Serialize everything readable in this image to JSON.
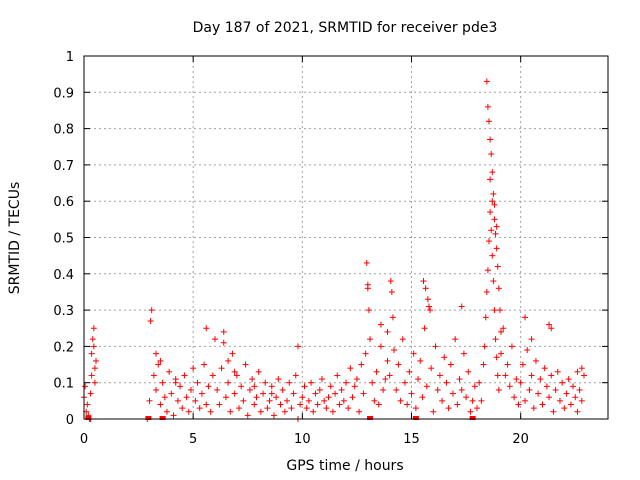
{
  "chart_data": {
    "type": "scatter",
    "title": "Day 187 of 2021, SRMTID for receiver pde3",
    "xlabel": "GPS time / hours",
    "ylabel": "SRMTID / TECUs",
    "xlim": [
      0,
      24
    ],
    "ylim": [
      0,
      1
    ],
    "xticks": [
      0,
      5,
      10,
      15,
      20
    ],
    "xtick_labels": [
      "0",
      "5",
      "10",
      "15",
      "20"
    ],
    "yticks": [
      0,
      0.1,
      0.2,
      0.3,
      0.4,
      0.5,
      0.6,
      0.7,
      0.8,
      0.9,
      1
    ],
    "ytick_labels": [
      "0",
      "0.1",
      "0.2",
      "0.3",
      "0.4",
      "0.5",
      "0.6",
      "0.7",
      "0.8",
      "0.9",
      "1"
    ],
    "grid": true,
    "marker": "plus",
    "series": [
      {
        "name": "pde3",
        "color": "#ff0000",
        "x": [
          0.0,
          0.05,
          0.1,
          0.15,
          0.2,
          0.25,
          0.3,
          0.35,
          0.4,
          0.45,
          0.5,
          0.55,
          0.3,
          0.35,
          0.45,
          0.5,
          2.9,
          3.0,
          3.1,
          3.2,
          3.3,
          3.4,
          3.5,
          3.6,
          3.7,
          3.8,
          3.9,
          4.0,
          4.1,
          4.2,
          4.3,
          4.4,
          4.5,
          4.6,
          4.7,
          4.8,
          4.9,
          5.0,
          5.1,
          5.2,
          5.3,
          5.4,
          5.5,
          5.6,
          5.7,
          5.8,
          5.9,
          3.05,
          3.3,
          3.5,
          4.2,
          5.6,
          6.0,
          6.1,
          6.2,
          6.3,
          6.4,
          6.5,
          6.6,
          6.7,
          6.8,
          6.9,
          7.0,
          7.1,
          7.2,
          7.3,
          7.4,
          7.5,
          7.6,
          7.7,
          7.8,
          7.9,
          8.0,
          8.1,
          8.2,
          8.3,
          8.4,
          8.5,
          8.6,
          8.7,
          8.8,
          8.9,
          9.0,
          9.1,
          9.2,
          9.3,
          9.4,
          9.5,
          9.6,
          9.7,
          9.8,
          9.9,
          6.4,
          6.6,
          6.9,
          7.8,
          8.6,
          9.8,
          10.0,
          10.1,
          10.2,
          10.3,
          10.4,
          10.5,
          10.6,
          10.7,
          10.8,
          10.9,
          11.0,
          11.1,
          11.2,
          11.3,
          11.4,
          11.5,
          11.6,
          11.7,
          11.8,
          11.9,
          12.0,
          12.1,
          12.2,
          12.3,
          12.4,
          12.5,
          12.6,
          12.7,
          12.8,
          12.9,
          13.0,
          13.1,
          13.2,
          13.3,
          13.4,
          13.5,
          13.6,
          13.7,
          13.8,
          13.9,
          12.95,
          13.0,
          13.05,
          13.6,
          13.9,
          14.0,
          14.1,
          14.2,
          14.3,
          14.4,
          14.5,
          14.6,
          14.7,
          14.8,
          14.9,
          15.0,
          15.1,
          15.2,
          15.3,
          15.4,
          15.5,
          15.6,
          15.7,
          15.8,
          15.9,
          16.0,
          16.1,
          16.2,
          16.3,
          16.4,
          16.5,
          16.6,
          16.7,
          16.8,
          16.9,
          17.0,
          17.1,
          17.2,
          17.3,
          17.4,
          17.5,
          17.6,
          17.7,
          17.8,
          17.9,
          14.05,
          14.15,
          15.55,
          15.65,
          15.75,
          15.85,
          17.3,
          18.0,
          18.1,
          18.2,
          18.3,
          18.35,
          18.4,
          18.45,
          18.5,
          18.55,
          18.6,
          18.65,
          18.7,
          18.75,
          18.8,
          18.85,
          18.9,
          18.95,
          19.0,
          19.1,
          19.2,
          19.3,
          19.4,
          19.5,
          19.6,
          19.7,
          19.8,
          19.9,
          18.45,
          18.5,
          18.55,
          18.6,
          18.65,
          18.7,
          18.75,
          18.8,
          18.85,
          18.9,
          18.95,
          19.0,
          19.05,
          19.1,
          18.6,
          18.7,
          18.8,
          18.9,
          20.0,
          20.1,
          20.2,
          20.3,
          20.4,
          20.5,
          20.6,
          20.7,
          20.8,
          20.9,
          21.0,
          21.1,
          21.2,
          21.3,
          21.4,
          21.5,
          21.6,
          21.7,
          21.8,
          21.9,
          22.0,
          22.1,
          22.2,
          22.3,
          22.4,
          22.5,
          22.6,
          22.7,
          22.8,
          22.9,
          20.2,
          20.5,
          21.3,
          21.4,
          22.6,
          22.8
        ],
        "y": [
          0.06,
          0.09,
          0.02,
          0.04,
          0.01,
          0.0,
          0.0,
          0.12,
          0.22,
          0.25,
          0.14,
          0.16,
          0.07,
          0.18,
          0.2,
          0.1,
          0.0,
          0.05,
          0.3,
          0.12,
          0.08,
          0.15,
          0.04,
          0.1,
          0.06,
          0.02,
          0.13,
          0.07,
          0.01,
          0.11,
          0.05,
          0.09,
          0.03,
          0.12,
          0.06,
          0.02,
          0.08,
          0.14,
          0.05,
          0.1,
          0.03,
          0.07,
          0.15,
          0.04,
          0.09,
          0.02,
          0.12,
          0.27,
          0.18,
          0.16,
          0.1,
          0.25,
          0.22,
          0.08,
          0.04,
          0.14,
          0.24,
          0.06,
          0.1,
          0.02,
          0.18,
          0.07,
          0.12,
          0.03,
          0.09,
          0.05,
          0.15,
          0.01,
          0.08,
          0.11,
          0.04,
          0.06,
          0.13,
          0.02,
          0.07,
          0.1,
          0.03,
          0.05,
          0.09,
          0.01,
          0.06,
          0.11,
          0.04,
          0.08,
          0.02,
          0.05,
          0.1,
          0.03,
          0.07,
          0.12,
          0.0,
          0.04,
          0.21,
          0.16,
          0.13,
          0.09,
          0.07,
          0.2,
          0.06,
          0.09,
          0.03,
          0.05,
          0.1,
          0.02,
          0.07,
          0.04,
          0.08,
          0.11,
          0.05,
          0.03,
          0.06,
          0.09,
          0.02,
          0.07,
          0.12,
          0.04,
          0.08,
          0.05,
          0.1,
          0.03,
          0.14,
          0.06,
          0.09,
          0.11,
          0.02,
          0.15,
          0.07,
          0.18,
          0.36,
          0.22,
          0.1,
          0.05,
          0.13,
          0.04,
          0.2,
          0.08,
          0.11,
          0.16,
          0.43,
          0.37,
          0.3,
          0.26,
          0.24,
          0.12,
          0.35,
          0.19,
          0.08,
          0.15,
          0.05,
          0.22,
          0.1,
          0.04,
          0.13,
          0.07,
          0.18,
          0.03,
          0.11,
          0.16,
          0.06,
          0.25,
          0.09,
          0.31,
          0.14,
          0.02,
          0.2,
          0.08,
          0.12,
          0.05,
          0.17,
          0.1,
          0.03,
          0.15,
          0.07,
          0.22,
          0.04,
          0.11,
          0.08,
          0.18,
          0.06,
          0.13,
          0.02,
          0.05,
          0.09,
          0.38,
          0.28,
          0.38,
          0.36,
          0.33,
          0.3,
          0.31,
          0.03,
          0.1,
          0.05,
          0.15,
          0.2,
          0.28,
          0.35,
          0.41,
          0.49,
          0.57,
          0.52,
          0.45,
          0.38,
          0.3,
          0.22,
          0.17,
          0.12,
          0.08,
          0.18,
          0.25,
          0.12,
          0.15,
          0.09,
          0.2,
          0.06,
          0.11,
          0.04,
          0.93,
          0.86,
          0.82,
          0.77,
          0.73,
          0.68,
          0.62,
          0.55,
          0.51,
          0.47,
          0.42,
          0.36,
          0.3,
          0.24,
          0.66,
          0.6,
          0.59,
          0.53,
          0.1,
          0.15,
          0.05,
          0.19,
          0.08,
          0.12,
          0.03,
          0.16,
          0.07,
          0.11,
          0.04,
          0.14,
          0.09,
          0.06,
          0.12,
          0.02,
          0.08,
          0.13,
          0.05,
          0.1,
          0.03,
          0.07,
          0.11,
          0.04,
          0.09,
          0.06,
          0.02,
          0.08,
          0.05,
          0.12,
          0.28,
          0.22,
          0.26,
          0.25,
          0.13,
          0.14
        ]
      }
    ],
    "extra_points": [
      {
        "x": 0.2,
        "y": 0.0
      },
      {
        "x": 2.95,
        "y": 0.0
      },
      {
        "x": 3.6,
        "y": 0.0
      },
      {
        "x": 13.1,
        "y": 0.0
      },
      {
        "x": 15.2,
        "y": 0.0
      },
      {
        "x": 17.8,
        "y": 0.0
      }
    ]
  }
}
